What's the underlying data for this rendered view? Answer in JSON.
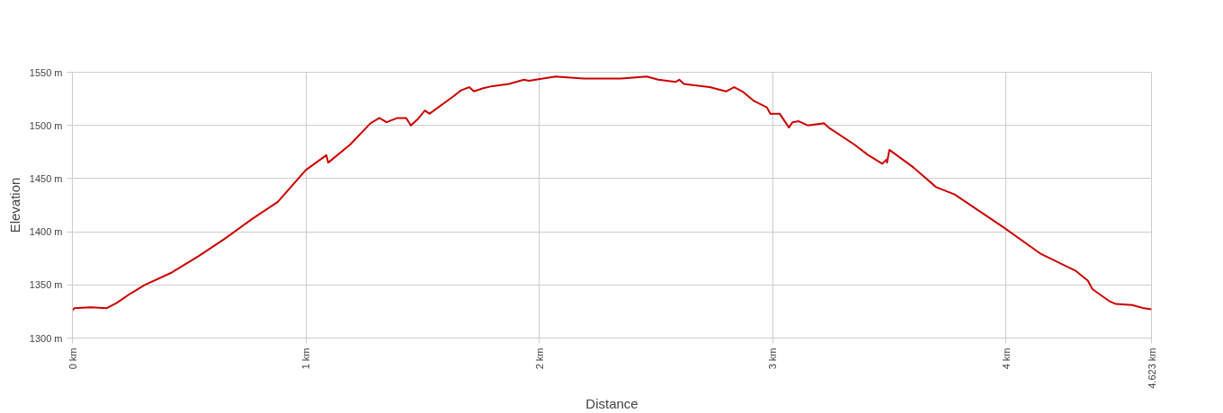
{
  "chart_data": {
    "type": "line",
    "xlabel": "Distance",
    "ylabel": "Elevation",
    "x": [
      0,
      0.008,
      0.077,
      0.146,
      0.19,
      0.25,
      0.31,
      0.42,
      0.54,
      0.65,
      0.77,
      0.88,
      1.0,
      1.088,
      1.096,
      1.19,
      1.277,
      1.315,
      1.346,
      1.392,
      1.43,
      1.45,
      1.48,
      1.51,
      1.53,
      1.63,
      1.665,
      1.7,
      1.72,
      1.76,
      1.8,
      1.87,
      1.935,
      1.955,
      2.07,
      2.19,
      2.35,
      2.46,
      2.51,
      2.585,
      2.6,
      2.62,
      2.73,
      2.8,
      2.835,
      2.87,
      2.92,
      2.975,
      2.99,
      3.03,
      3.07,
      3.085,
      3.11,
      3.15,
      3.22,
      3.24,
      3.35,
      3.41,
      3.47,
      3.488,
      3.49,
      3.5,
      3.6,
      3.7,
      3.78,
      3.99,
      4.15,
      4.3,
      4.35,
      4.37,
      4.44,
      4.47,
      4.54,
      4.59,
      4.623
    ],
    "series": [
      {
        "color": "#cc0000",
        "values": [
          1326,
          1328,
          1329,
          1328,
          1333,
          1342,
          1350,
          1361,
          1377,
          1393,
          1412,
          1428,
          1458,
          1472,
          1465,
          1482,
          1502,
          1507,
          1503,
          1507,
          1507,
          1500,
          1506,
          1514,
          1511,
          1527,
          1533,
          1536,
          1532,
          1535,
          1537,
          1539,
          1543,
          1542,
          1546,
          1544,
          1544,
          1546,
          1543,
          1541,
          1543,
          1539,
          1536,
          1532,
          1536,
          1532,
          1523,
          1517,
          1511,
          1511,
          1498,
          1503,
          1504,
          1500,
          1502,
          1498,
          1482,
          1472,
          1464,
          1468,
          1465,
          1477,
          1461,
          1442,
          1435,
          1404,
          1379,
          1363,
          1354,
          1346,
          1335,
          1332,
          1331,
          1328,
          1327
        ]
      }
    ],
    "xlim": [
      0,
      4.623
    ],
    "ylim": [
      1300,
      1550
    ],
    "xticks": [
      {
        "value": 0,
        "label": "0 km"
      },
      {
        "value": 1,
        "label": "1 km"
      },
      {
        "value": 2,
        "label": "2 km"
      },
      {
        "value": 3,
        "label": "3 km"
      },
      {
        "value": 4,
        "label": "4 km"
      },
      {
        "value": 4.623,
        "label": "4.623 km"
      }
    ],
    "yticks": [
      {
        "value": 1300,
        "label": "1300 m"
      },
      {
        "value": 1350,
        "label": "1350 m"
      },
      {
        "value": 1400,
        "label": "1400 m"
      },
      {
        "value": 1450,
        "label": "1450 m"
      },
      {
        "value": 1500,
        "label": "1500 m"
      },
      {
        "value": 1550,
        "label": "1550 m"
      }
    ],
    "grid": true,
    "line_style": "solid"
  }
}
